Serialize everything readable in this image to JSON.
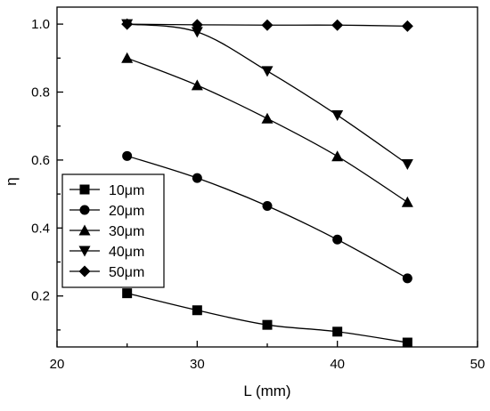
{
  "chart_data": {
    "type": "line",
    "xlabel": "L (mm)",
    "ylabel": "η",
    "xlim": [
      20,
      50
    ],
    "ylim": [
      0.05,
      1.05
    ],
    "x_ticks": [
      20,
      30,
      40,
      50
    ],
    "y_ticks": [
      0.2,
      0.4,
      0.6,
      0.8,
      1.0
    ],
    "x_tick_labels": [
      "20",
      "30",
      "40",
      "50"
    ],
    "y_tick_labels": [
      "0.2",
      "0.4",
      "0.6",
      "0.8",
      "1.0"
    ],
    "grid": false,
    "legend_position": "left-lower",
    "x": [
      25,
      30,
      35,
      40,
      45
    ],
    "series": [
      {
        "name": "10μm",
        "marker": "square",
        "values": [
          0.208,
          0.158,
          0.115,
          0.095,
          0.063
        ]
      },
      {
        "name": "20μm",
        "marker": "circle",
        "values": [
          0.612,
          0.547,
          0.465,
          0.366,
          0.252
        ]
      },
      {
        "name": "30μm",
        "marker": "triangle-up",
        "values": [
          0.9,
          0.82,
          0.722,
          0.611,
          0.476
        ]
      },
      {
        "name": "40μm",
        "marker": "triangle-down",
        "values": [
          1.0,
          0.977,
          0.862,
          0.732,
          0.588
        ]
      },
      {
        "name": "50μm",
        "marker": "diamond",
        "values": [
          1.0,
          0.998,
          0.997,
          0.997,
          0.994
        ]
      }
    ],
    "colors": {
      "line": "#000000",
      "marker": "#000000",
      "background": "#ffffff"
    }
  }
}
